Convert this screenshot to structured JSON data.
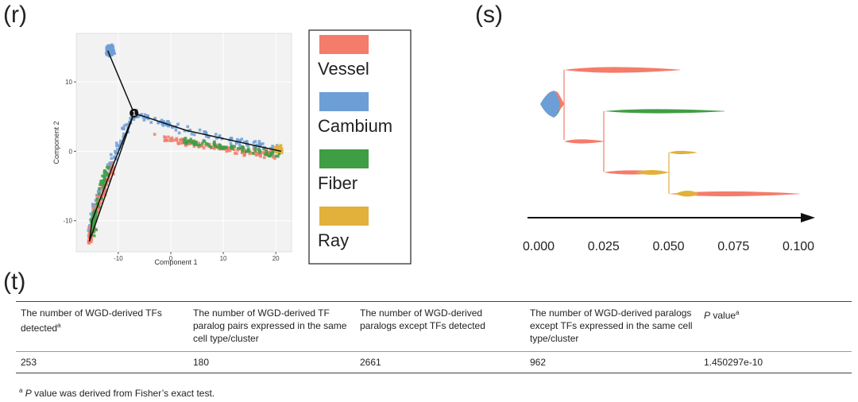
{
  "panels": {
    "r": "(r)",
    "s": "(s)",
    "t": "(t)"
  },
  "chart_data": [
    {
      "type": "scatter",
      "xlabel": "Component 1",
      "ylabel": "Component 2",
      "xlim": [
        -18,
        23
      ],
      "ylim": [
        -14.5,
        17
      ],
      "xticks": [
        -10,
        0,
        10,
        20
      ],
      "yticks": [
        -10,
        0,
        10
      ],
      "grid": true,
      "branch_point_label": "1",
      "trajectory": [
        [
          -12,
          14.5
        ],
        [
          -7,
          5.5
        ],
        [
          -11,
          -2
        ],
        [
          -15,
          -10
        ],
        [
          -15.5,
          -13
        ],
        [
          -7,
          5.5
        ],
        [
          3,
          3
        ],
        [
          12,
          1.5
        ],
        [
          21,
          0
        ]
      ],
      "legend": {
        "placement": "right",
        "entries": [
          {
            "name": "Vessel",
            "color": "#f47c6b"
          },
          {
            "name": "Cambium",
            "color": "#6d9fd6"
          },
          {
            "name": "Fiber",
            "color": "#3f9e44"
          },
          {
            "name": "Ray",
            "color": "#e1b13b"
          }
        ]
      },
      "clusters": [
        {
          "series": "Cambium",
          "center": [
            -11.5,
            14.5
          ],
          "spread": [
            1.0,
            1.0
          ],
          "count": 140
        },
        {
          "series": "Cambium",
          "path": [
            [
              -7,
              5.5
            ],
            [
              -11,
              -1
            ],
            [
              -14,
              -7
            ],
            [
              -15.5,
              -12
            ]
          ],
          "count": 120
        },
        {
          "series": "Vessel",
          "path": [
            [
              -11,
              -2
            ],
            [
              -14,
              -8
            ],
            [
              -15.5,
              -13
            ]
          ],
          "count": 120
        },
        {
          "series": "Fiber",
          "path": [
            [
              -12,
              -2
            ],
            [
              -14.5,
              -9
            ],
            [
              -15,
              -12
            ]
          ],
          "count": 70
        },
        {
          "series": "Cambium",
          "path": [
            [
              -7,
              5.5
            ],
            [
              3,
              3
            ],
            [
              12,
              1.5
            ],
            [
              20,
              0.5
            ]
          ],
          "count": 110
        },
        {
          "series": "Vessel",
          "path": [
            [
              -3,
              2
            ],
            [
              5,
              1
            ],
            [
              14,
              0
            ],
            [
              20,
              -0.5
            ]
          ],
          "count": 120
        },
        {
          "series": "Fiber",
          "path": [
            [
              2,
              1.5
            ],
            [
              12,
              0.5
            ],
            [
              21,
              -0.5
            ]
          ],
          "count": 90
        },
        {
          "series": "Ray",
          "center": [
            20.5,
            0.3
          ],
          "spread": [
            0.9,
            0.8
          ],
          "count": 50
        }
      ]
    },
    {
      "type": "area",
      "xticks": [
        "0.000",
        "0.025",
        "0.050",
        "0.075",
        "0.100"
      ],
      "xlim": [
        0.0,
        0.1
      ],
      "note": "lineage tree density streams",
      "colors": {
        "Vessel": "#f47c6b",
        "Cambium": "#6d9fd6",
        "Fiber": "#3f9e44",
        "Ray": "#e1b13b"
      }
    }
  ],
  "table": {
    "headers": [
      {
        "text": "The number of WGD-derived TFs detected",
        "sup": "a"
      },
      {
        "text": "The number of WGD-derived TF paralog pairs expressed in the same cell type/cluster",
        "sup": ""
      },
      {
        "text": "The number of WGD-derived paralogs except TFs detected",
        "sup": ""
      },
      {
        "text": "The number of WGD-derived paralogs except TFs expressed in the same cell type/cluster",
        "sup": ""
      },
      {
        "text": "P value",
        "sup": "a"
      }
    ],
    "row": [
      "253",
      "180",
      "2661",
      "962",
      "1.450297e-10"
    ]
  },
  "footnote": {
    "marker": "a",
    "italic": "P",
    "text": " value was derived from Fisher’s exact test."
  }
}
